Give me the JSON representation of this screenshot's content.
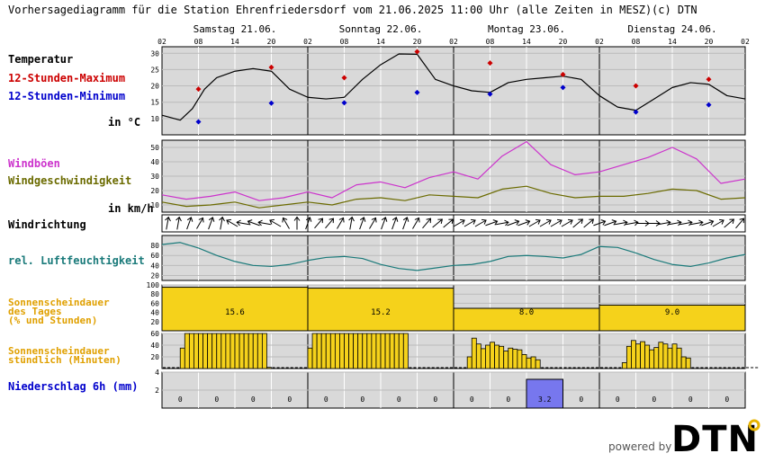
{
  "header": {
    "title": "Vorhersagediagramm für die Station Ehrenfriedersdorf vom 21.06.2025 11:00 Uhr (alle Zeiten in MESZ)",
    "copyright": "(c) DTN"
  },
  "branding": {
    "powered_by": "powered by",
    "logo_text": "DTN"
  },
  "colors": {
    "temp_line": "#000000",
    "tmax": "#cc0000",
    "tmin": "#0000cc",
    "gust": "#cc33cc",
    "wind": "#6b6b00",
    "humidity": "#1a7a7a",
    "sun": "#f5d21b",
    "rain": "#7777ee",
    "panel_bg": "#d9d9d9",
    "label_orange": "#e0a000",
    "label_blue": "#0000cc"
  },
  "chart_data": {
    "type": "line",
    "days": [
      "Samstag 21.06.",
      "Sonntag 22.06.",
      "Montag 23.06.",
      "Dienstag 24.06."
    ],
    "hour_ticks": [
      "02",
      "08",
      "14",
      "20",
      "02",
      "08",
      "14",
      "20",
      "02",
      "08",
      "14",
      "20",
      "02",
      "08",
      "14",
      "20",
      "02"
    ],
    "temperature": {
      "label": "Temperatur",
      "unit": "in °C",
      "ylim": [
        5,
        32
      ],
      "ticks": [
        10,
        15,
        20,
        25,
        30
      ],
      "hours": [
        0,
        3,
        5,
        7,
        9,
        12,
        15,
        18,
        21,
        24,
        27,
        30,
        33,
        36,
        39,
        42,
        45,
        48,
        51,
        54,
        57,
        60,
        63,
        66,
        69,
        72,
        75,
        78,
        81,
        84,
        87,
        90,
        93,
        96
      ],
      "values": [
        11,
        9.5,
        13,
        19,
        22.5,
        24.5,
        25.3,
        24.5,
        19,
        16.5,
        16,
        16.5,
        22,
        26.5,
        29.8,
        29.7,
        22,
        20,
        18.5,
        18,
        21,
        22,
        22.5,
        23,
        22,
        17,
        13.5,
        12.5,
        16,
        19.5,
        21,
        20.5,
        17,
        16
      ],
      "max_label": "12-Stunden-Maximum",
      "min_label": "12-Stunden-Minimum",
      "max_points": [
        {
          "h": 6,
          "v": 19
        },
        {
          "h": 18,
          "v": 25.7
        },
        {
          "h": 30,
          "v": 22.5
        },
        {
          "h": 42,
          "v": 30.5
        },
        {
          "h": 54,
          "v": 27
        },
        {
          "h": 66,
          "v": 23.5
        },
        {
          "h": 78,
          "v": 20
        },
        {
          "h": 90,
          "v": 22
        }
      ],
      "min_points": [
        {
          "h": 6,
          "v": 9
        },
        {
          "h": 18,
          "v": 14.7
        },
        {
          "h": 30,
          "v": 14.8
        },
        {
          "h": 42,
          "v": 18
        },
        {
          "h": 54,
          "v": 17.5
        },
        {
          "h": 66,
          "v": 19.5
        },
        {
          "h": 78,
          "v": 12
        },
        {
          "h": 90,
          "v": 14.2
        }
      ]
    },
    "wind": {
      "gust_label": "Windböen",
      "speed_label": "Windgeschwindigkeit",
      "unit": "in km/h",
      "ylim": [
        5,
        55
      ],
      "ticks": [
        10,
        20,
        30,
        40,
        50
      ],
      "hours": [
        0,
        4,
        8,
        12,
        16,
        20,
        24,
        28,
        32,
        36,
        40,
        44,
        48,
        52,
        56,
        60,
        64,
        68,
        72,
        76,
        80,
        84,
        88,
        92,
        96
      ],
      "gust": [
        17,
        14,
        16,
        19,
        13,
        15,
        19,
        15,
        24,
        26,
        22,
        29,
        33,
        28,
        44,
        54,
        38,
        31,
        33,
        38,
        43,
        50,
        42,
        25,
        28
      ],
      "speed": [
        12,
        9,
        10,
        12,
        8,
        10,
        12,
        10,
        14,
        15,
        13,
        17,
        16,
        15,
        21,
        23,
        18,
        15,
        16,
        16,
        18,
        21,
        20,
        14,
        15
      ]
    },
    "wind_direction": {
      "label": "Windrichtung",
      "arrow_angles_deg": [
        10,
        10,
        20,
        30,
        20,
        10,
        -60,
        -80,
        -70,
        -80,
        -60,
        -30,
        0,
        20,
        40,
        40,
        30,
        10,
        20,
        30,
        20,
        20,
        20,
        30,
        40,
        50,
        50,
        60,
        60,
        60,
        70,
        80,
        70,
        70,
        60,
        60,
        60,
        60,
        50,
        50,
        70,
        70,
        80,
        80,
        90,
        90,
        80,
        80,
        80,
        80,
        70,
        60,
        50,
        40
      ]
    },
    "humidity": {
      "label": "rel. Luftfeuchtigkeit",
      "ylim": [
        10,
        100
      ],
      "ticks": [
        20,
        40,
        60,
        80
      ],
      "hours": [
        0,
        3,
        6,
        9,
        12,
        15,
        18,
        21,
        24,
        27,
        30,
        33,
        36,
        39,
        42,
        45,
        48,
        51,
        54,
        57,
        60,
        63,
        66,
        69,
        72,
        75,
        78,
        81,
        84,
        87,
        90,
        93,
        96
      ],
      "values": [
        82,
        86,
        75,
        60,
        48,
        40,
        38,
        42,
        50,
        56,
        58,
        54,
        42,
        34,
        30,
        35,
        40,
        42,
        48,
        58,
        60,
        58,
        55,
        62,
        78,
        76,
        65,
        52,
        42,
        38,
        45,
        55,
        62
      ]
    },
    "sunshine_daily": {
      "label_line1": "Sonnenscheindauer",
      "label_line2": "des Tages",
      "label_line3": "(% und Stunden)",
      "ylim": [
        0,
        100
      ],
      "ticks": [
        20,
        40,
        60,
        80,
        100
      ],
      "percent": [
        95,
        93,
        49,
        56
      ],
      "hours_text": [
        "15.6",
        "15.2",
        "8.0",
        "9.0"
      ]
    },
    "sunshine_hourly": {
      "label_line1": "Sonnenscheindauer",
      "label_line2": "stündlich (Minuten)",
      "ylim": [
        0,
        60
      ],
      "ticks": [
        20,
        40,
        60
      ],
      "start_hour": 0,
      "minutes": [
        0,
        0,
        0,
        0,
        35,
        60,
        60,
        60,
        60,
        60,
        60,
        60,
        60,
        60,
        60,
        60,
        60,
        60,
        60,
        60,
        60,
        60,
        60,
        2,
        0,
        0,
        0,
        0,
        0,
        0,
        0,
        0,
        35,
        60,
        60,
        60,
        60,
        60,
        60,
        60,
        60,
        60,
        60,
        60,
        60,
        60,
        60,
        60,
        60,
        60,
        60,
        60,
        60,
        60,
        0,
        0,
        0,
        0,
        0,
        0,
        0,
        0,
        0,
        0,
        0,
        0,
        0,
        20,
        52,
        42,
        34,
        40,
        45,
        40,
        38,
        30,
        35,
        33,
        32,
        24,
        18,
        20,
        15,
        0,
        0,
        0,
        0,
        0,
        0,
        0,
        0,
        0,
        0,
        0,
        0,
        0,
        0,
        0,
        0,
        0,
        0,
        10,
        38,
        48,
        42,
        46,
        40,
        32,
        36,
        45,
        42,
        35,
        42,
        35,
        20,
        18,
        0,
        0,
        0,
        0,
        0,
        0,
        0,
        0,
        0,
        0,
        0,
        0,
        0,
        0,
        0
      ]
    },
    "precipitation": {
      "label": "Niederschlag 6h (mm)",
      "ylim": [
        0,
        4
      ],
      "ticks": [
        2,
        4
      ],
      "values": [
        0,
        0,
        0,
        0,
        0,
        0,
        0,
        0,
        0,
        0,
        3.2,
        0,
        0,
        0,
        0,
        0
      ],
      "value_text": [
        "0",
        "0",
        "0",
        "0",
        "0",
        "0",
        "0",
        "0",
        "0",
        "0",
        "3.2",
        "0",
        "0",
        "0",
        "0",
        "0"
      ]
    }
  }
}
